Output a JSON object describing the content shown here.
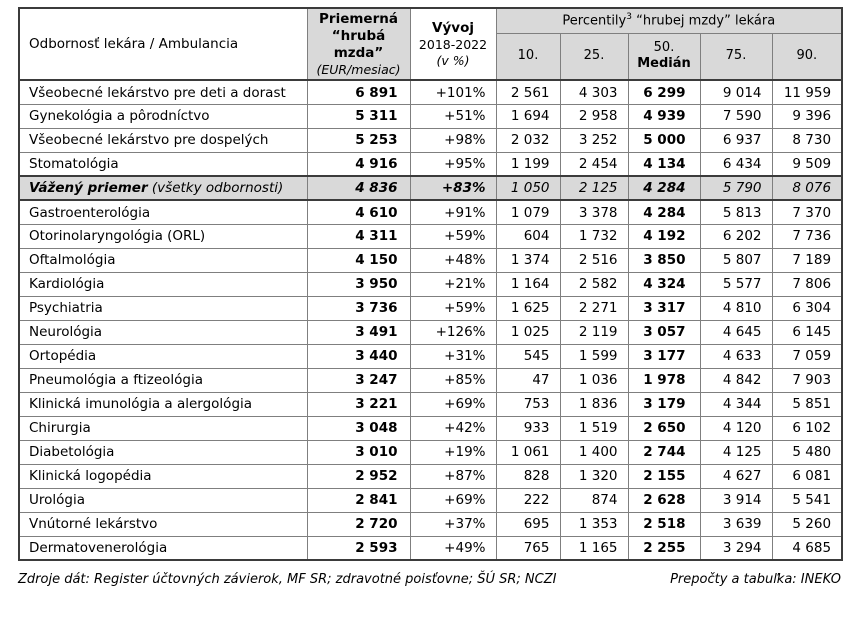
{
  "colors": {
    "header_bg": "#d9d9d9",
    "highlight_bg": "#d9d9d9",
    "border_dark": "#3b3b3b",
    "border_light": "#7f7f7f"
  },
  "table": {
    "header": {
      "specialty": "Odbornosť lekára / Ambulancia",
      "avg_line1": "Priemerná",
      "avg_line2": "“hrubá",
      "avg_line3": "mzda”",
      "avg_unit": "(EUR/mesiac)",
      "growth_title": "Vývoj",
      "growth_period": "2018-2022",
      "growth_unit": "(v %)",
      "percentiles_pre": "Percentily",
      "percentiles_sup": "3",
      "percentiles_post": " “hrubej mzdy” lekára",
      "p10": "10.",
      "p25": "25.",
      "p50_line1": "50.",
      "p50_line2": "Medián",
      "p75": "75.",
      "p90": "90."
    },
    "rows": [
      {
        "name": "Všeobecné lekárstvo pre deti a dorast",
        "avg": "6 891",
        "growth": "+101%",
        "p10": "2 561",
        "p25": "4 303",
        "p50": "6 299",
        "p75": "9 014",
        "p90": "11 959",
        "highlight": false
      },
      {
        "name": "Gynekológia a pôrodníctvo",
        "avg": "5 311",
        "growth": "+51%",
        "p10": "1 694",
        "p25": "2 958",
        "p50": "4 939",
        "p75": "7 590",
        "p90": "9 396",
        "highlight": false
      },
      {
        "name": "Všeobecné lekárstvo pre dospelých",
        "avg": "5 253",
        "growth": "+98%",
        "p10": "2 032",
        "p25": "3 252",
        "p50": "5 000",
        "p75": "6 937",
        "p90": "8 730",
        "highlight": false
      },
      {
        "name": "Stomatológia",
        "avg": "4 916",
        "growth": "+95%",
        "p10": "1 199",
        "p25": "2 454",
        "p50": "4 134",
        "p75": "6 434",
        "p90": "9 509",
        "highlight": false
      },
      {
        "name": "Vážený priemer",
        "note": "(všetky odbornosti)",
        "avg": "4 836",
        "growth": "+83%",
        "p10": "1 050",
        "p25": "2 125",
        "p50": "4 284",
        "p75": "5 790",
        "p90": "8 076",
        "highlight": true
      },
      {
        "name": "Gastroenterológia",
        "avg": "4 610",
        "growth": "+91%",
        "p10": "1 079",
        "p25": "3 378",
        "p50": "4 284",
        "p75": "5 813",
        "p90": "7 370",
        "highlight": false
      },
      {
        "name": "Otorinolaryngológia (ORL)",
        "avg": "4 311",
        "growth": "+59%",
        "p10": "604",
        "p25": "1 732",
        "p50": "4 192",
        "p75": "6 202",
        "p90": "7 736",
        "highlight": false
      },
      {
        "name": "Oftalmológia",
        "avg": "4 150",
        "growth": "+48%",
        "p10": "1 374",
        "p25": "2 516",
        "p50": "3 850",
        "p75": "5 807",
        "p90": "7 189",
        "highlight": false
      },
      {
        "name": "Kardiológia",
        "avg": "3 950",
        "growth": "+21%",
        "p10": "1 164",
        "p25": "2 582",
        "p50": "4 324",
        "p75": "5 577",
        "p90": "7 806",
        "highlight": false
      },
      {
        "name": "Psychiatria",
        "avg": "3 736",
        "growth": "+59%",
        "p10": "1 625",
        "p25": "2 271",
        "p50": "3 317",
        "p75": "4 810",
        "p90": "6 304",
        "highlight": false
      },
      {
        "name": "Neurológia",
        "avg": "3 491",
        "growth": "+126%",
        "p10": "1 025",
        "p25": "2 119",
        "p50": "3 057",
        "p75": "4 645",
        "p90": "6 145",
        "highlight": false
      },
      {
        "name": "Ortopédia",
        "avg": "3 440",
        "growth": "+31%",
        "p10": "545",
        "p25": "1 599",
        "p50": "3 177",
        "p75": "4 633",
        "p90": "7 059",
        "highlight": false
      },
      {
        "name": "Pneumológia a ftizeológia",
        "avg": "3 247",
        "growth": "+85%",
        "p10": "47",
        "p25": "1 036",
        "p50": "1 978",
        "p75": "4 842",
        "p90": "7 903",
        "highlight": false
      },
      {
        "name": "Klinická imunológia a alergológia",
        "avg": "3 221",
        "growth": "+69%",
        "p10": "753",
        "p25": "1 836",
        "p50": "3 179",
        "p75": "4 344",
        "p90": "5 851",
        "highlight": false
      },
      {
        "name": "Chirurgia",
        "avg": "3 048",
        "growth": "+42%",
        "p10": "933",
        "p25": "1 519",
        "p50": "2 650",
        "p75": "4 120",
        "p90": "6 102",
        "highlight": false
      },
      {
        "name": "Diabetológia",
        "avg": "3 010",
        "growth": "+19%",
        "p10": "1 061",
        "p25": "1 400",
        "p50": "2 744",
        "p75": "4 125",
        "p90": "5 480",
        "highlight": false
      },
      {
        "name": "Klinická logopédia",
        "avg": "2 952",
        "growth": "+87%",
        "p10": "828",
        "p25": "1 320",
        "p50": "2 155",
        "p75": "4 627",
        "p90": "6 081",
        "highlight": false
      },
      {
        "name": "Urológia",
        "avg": "2 841",
        "growth": "+69%",
        "p10": "222",
        "p25": "874",
        "p50": "2 628",
        "p75": "3 914",
        "p90": "5 541",
        "highlight": false
      },
      {
        "name": "Vnútorné lekárstvo",
        "avg": "2 720",
        "growth": "+37%",
        "p10": "695",
        "p25": "1 353",
        "p50": "2 518",
        "p75": "3 639",
        "p90": "5 260",
        "highlight": false
      },
      {
        "name": "Dermatovenerológia",
        "avg": "2 593",
        "growth": "+49%",
        "p10": "765",
        "p25": "1 165",
        "p50": "2 255",
        "p75": "3 294",
        "p90": "4 685",
        "highlight": false
      }
    ]
  },
  "footer": {
    "sources": "Zdroje dát: Register účtovných závierok, MF SR; zdravotné poisťovne; ŠÚ SR; NCZI",
    "credits": "Prepočty a tabuľka: INEKO"
  }
}
